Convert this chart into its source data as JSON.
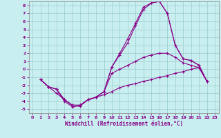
{
  "xlabel": "Windchill (Refroidissement éolien,°C)",
  "background_color": "#c8eef0",
  "line_color": "#880088",
  "grid_color": "#99cccc",
  "xlim": [
    -0.5,
    23.5
  ],
  "ylim": [
    -5.5,
    8.5
  ],
  "xticks": [
    0,
    1,
    2,
    3,
    4,
    5,
    6,
    7,
    8,
    9,
    10,
    11,
    12,
    13,
    14,
    15,
    16,
    17,
    18,
    19,
    20,
    21,
    22,
    23
  ],
  "yticks": [
    -5,
    -4,
    -3,
    -2,
    -1,
    0,
    1,
    2,
    3,
    4,
    5,
    6,
    7,
    8
  ],
  "curve1_x": [
    1,
    2,
    3,
    4,
    5,
    6,
    7,
    8,
    9,
    10,
    11,
    12,
    13,
    14,
    15,
    16,
    17,
    18,
    19,
    20,
    21,
    22
  ],
  "curve1_y": [
    -1.3,
    -2.2,
    -3.0,
    -3.8,
    -4.5,
    -4.5,
    -3.8,
    -3.5,
    -3.2,
    -2.8,
    -2.3,
    -2.0,
    -1.8,
    -1.5,
    -1.3,
    -1.0,
    -0.8,
    -0.5,
    -0.3,
    0.0,
    0.2,
    -1.5
  ],
  "curve2_x": [
    1,
    2,
    3,
    4,
    5,
    6,
    7,
    8,
    9,
    10,
    11,
    12,
    13,
    14,
    15,
    16,
    17,
    18,
    19,
    20,
    21,
    22
  ],
  "curve2_y": [
    -1.3,
    -2.2,
    -2.5,
    -4.0,
    -4.7,
    -4.6,
    -3.8,
    -3.5,
    -2.8,
    -0.5,
    0.0,
    0.5,
    1.0,
    1.5,
    1.8,
    2.0,
    2.0,
    1.5,
    0.8,
    0.5,
    0.2,
    -1.5
  ],
  "curve3_x": [
    1,
    2,
    3,
    4,
    5,
    6,
    7,
    8,
    9,
    10,
    11,
    12,
    13,
    14,
    15,
    16,
    17,
    18,
    19,
    20,
    21,
    22
  ],
  "curve3_y": [
    -1.3,
    -2.2,
    -2.5,
    -3.8,
    -4.5,
    -4.5,
    -3.8,
    -3.5,
    -2.8,
    0.3,
    1.8,
    3.3,
    5.5,
    7.5,
    8.3,
    8.5,
    7.0,
    3.0,
    1.3,
    1.1,
    0.5,
    -1.5
  ],
  "curve4_x": [
    1,
    2,
    3,
    4,
    5,
    6,
    7,
    8,
    9,
    10,
    11,
    12,
    13,
    14,
    15,
    16,
    17,
    18,
    19,
    20,
    21,
    22
  ],
  "curve4_y": [
    -1.3,
    -2.2,
    -2.5,
    -3.8,
    -4.5,
    -4.5,
    -3.8,
    -3.5,
    -2.8,
    0.3,
    2.0,
    3.8,
    5.8,
    7.8,
    8.3,
    8.5,
    7.0,
    3.0,
    1.3,
    1.1,
    0.5,
    -1.5
  ]
}
